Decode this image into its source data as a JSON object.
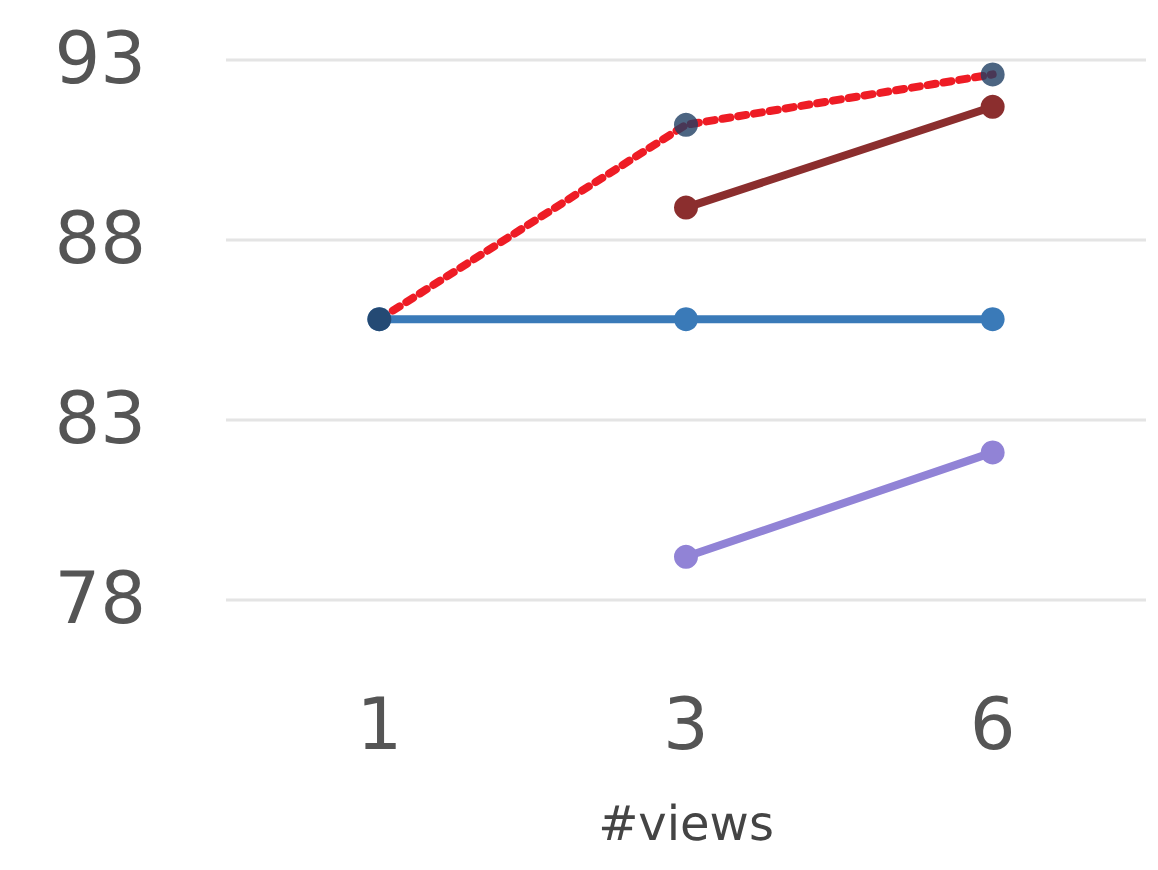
{
  "chart_data": {
    "type": "line",
    "xlabel": "#views",
    "categories": [
      "1",
      "3",
      "6"
    ],
    "series": [
      {
        "color": "#3a7ab8",
        "values": [
          85.8,
          85.8,
          85.8
        ]
      },
      {
        "color": "#8b2e2e",
        "values": [
          null,
          88.9,
          91.7
        ]
      },
      {
        "color": "#9183d6",
        "values": [
          null,
          79.2,
          82.1
        ]
      },
      {
        "color": "#ee1c25",
        "values": [
          85.8,
          91.2,
          92.6
        ],
        "line_style": "dotted",
        "marker": "none"
      },
      {
        "type": "scatter",
        "color": "#1f3f63",
        "x": [
          "1",
          "3",
          "6"
        ],
        "values": [
          85.8,
          91.2,
          92.6
        ]
      }
    ],
    "ylim": [
      78,
      93
    ],
    "yticks": [
      78,
      83,
      88,
      93
    ],
    "grid": "y",
    "marker": "circle",
    "line_style": "solid"
  }
}
